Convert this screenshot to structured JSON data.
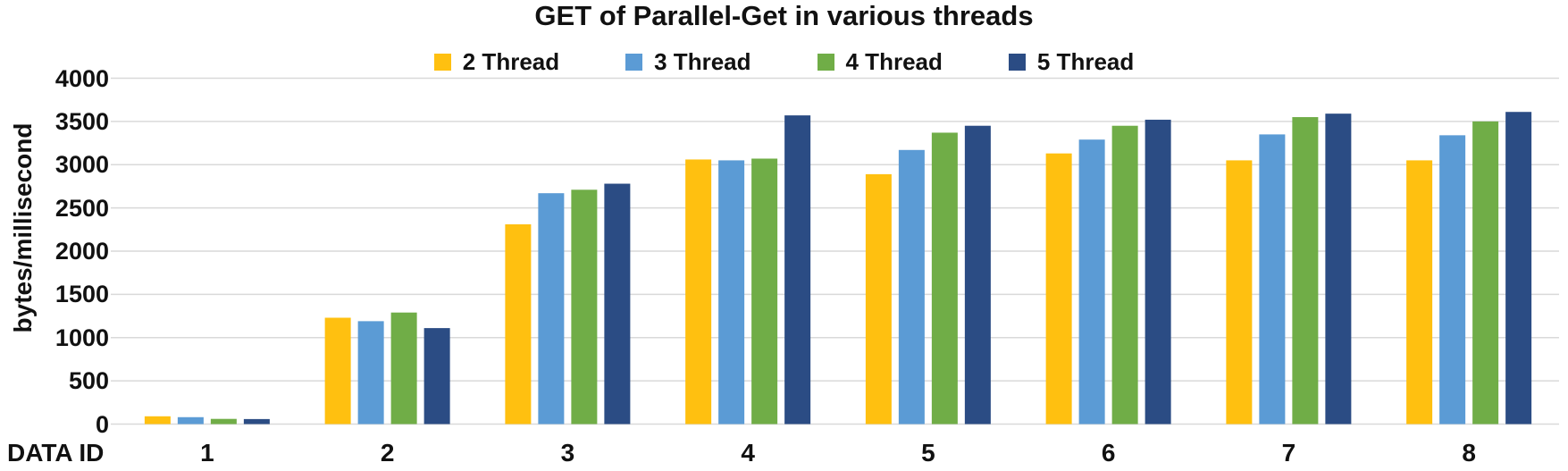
{
  "chart_data": {
    "type": "bar",
    "title": "GET of Parallel-Get in various threads",
    "ylabel": "bytes/millisecond",
    "xlabel": "DATA ID",
    "categories": [
      "1",
      "2",
      "3",
      "4",
      "5",
      "6",
      "7",
      "8"
    ],
    "yticks": [
      0,
      500,
      1000,
      1500,
      2000,
      2500,
      3000,
      3500,
      4000
    ],
    "ylim": [
      0,
      4000
    ],
    "grid": "horizontal",
    "legend_position": "top",
    "gridline_color": "#D9D9D9",
    "text_color": "#111111",
    "series": [
      {
        "name": "2 Thread",
        "color": "#FFC010",
        "values": [
          90,
          1230,
          2310,
          3060,
          2890,
          3130,
          3050,
          3050
        ]
      },
      {
        "name": "3 Thread",
        "color": "#5B9BD5",
        "values": [
          80,
          1190,
          2670,
          3050,
          3170,
          3290,
          3350,
          3340
        ]
      },
      {
        "name": "4 Thread",
        "color": "#70AD47",
        "values": [
          60,
          1290,
          2710,
          3070,
          3370,
          3450,
          3550,
          3500
        ]
      },
      {
        "name": "5 Thread",
        "color": "#2B4C84",
        "values": [
          58,
          1110,
          2780,
          3570,
          3450,
          3520,
          3590,
          3610
        ]
      }
    ]
  }
}
